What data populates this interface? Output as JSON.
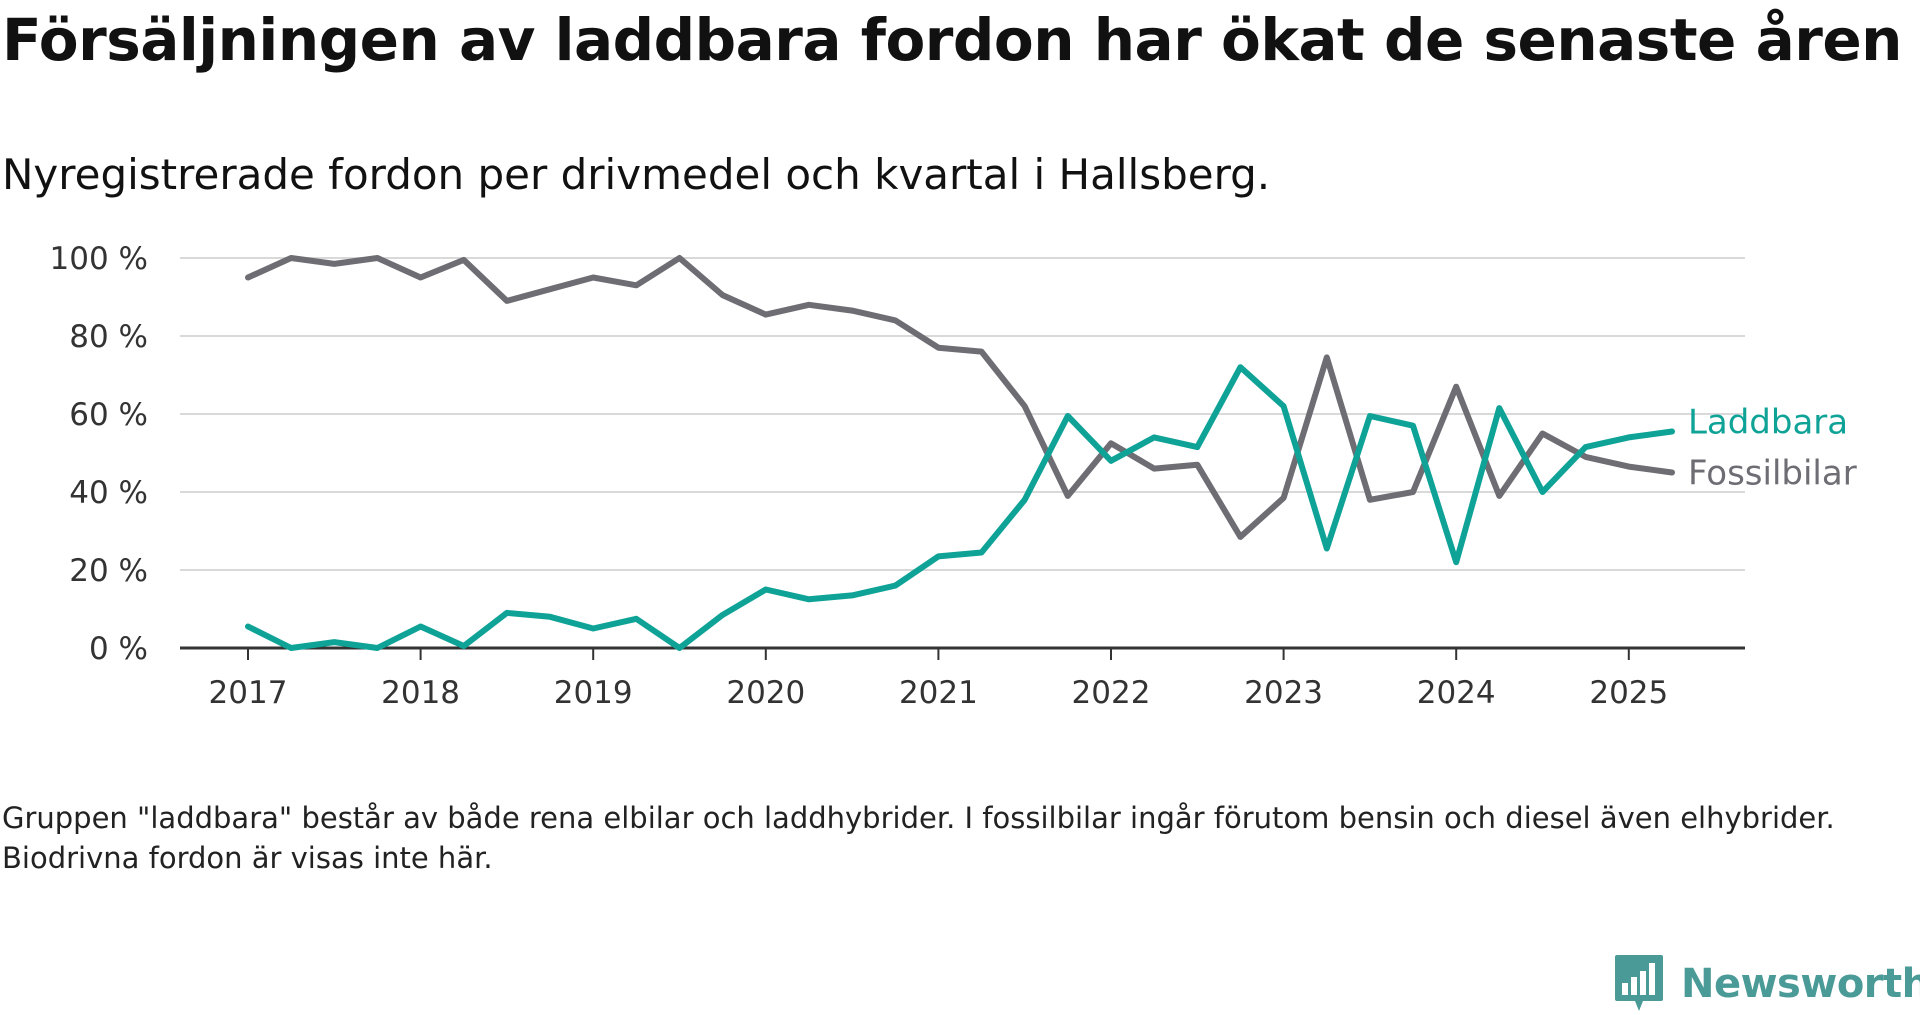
{
  "title": "Försäljningen av laddbara fordon har ökat de senaste åren",
  "subtitle": "Nyregistrerade fordon per drivmedel och kvartal i Hallsberg.",
  "footnote": "Gruppen \"laddbara\" består av både rena elbilar och laddhybrider. I fossilbilar ingår förutom bensin och diesel även elhybrider. Biodrivna fordon är visas inte här.",
  "brand": {
    "name": "Newsworthy",
    "icon": "newsworthy-logo-icon",
    "color": "#4a9a97"
  },
  "chart_data": {
    "type": "line",
    "title": "Försäljningen av laddbara fordon har ökat de senaste åren",
    "subtitle": "Nyregistrerade fordon per drivmedel och kvartal i Hallsberg.",
    "xlabel": "",
    "ylabel": "",
    "x_ticks": [
      "2017",
      "2018",
      "2019",
      "2020",
      "2021",
      "2022",
      "2023",
      "2024",
      "2025"
    ],
    "y_ticks": [
      "0 %",
      "20 %",
      "40 %",
      "60 %",
      "80 %",
      "100 %"
    ],
    "ylim": [
      0,
      100
    ],
    "grid": "horizontal",
    "legend": "direct labels at line ends",
    "x": [
      "2017-Q1",
      "2017-Q2",
      "2017-Q3",
      "2017-Q4",
      "2018-Q1",
      "2018-Q2",
      "2018-Q3",
      "2018-Q4",
      "2019-Q1",
      "2019-Q2",
      "2019-Q3",
      "2019-Q4",
      "2020-Q1",
      "2020-Q2",
      "2020-Q3",
      "2020-Q4",
      "2021-Q1",
      "2021-Q2",
      "2021-Q3",
      "2021-Q4",
      "2022-Q1",
      "2022-Q2",
      "2022-Q3",
      "2022-Q4",
      "2023-Q1",
      "2023-Q2",
      "2023-Q3",
      "2023-Q4",
      "2024-Q1",
      "2024-Q2",
      "2024-Q3",
      "2024-Q4",
      "2025-Q1",
      "2025-Q2"
    ],
    "series": [
      {
        "name": "Fossilbilar",
        "color": "#6e6d73",
        "values": [
          95,
          100,
          98.5,
          100,
          95,
          99.5,
          89,
          92,
          95,
          93,
          100,
          90.5,
          85.5,
          88,
          86.5,
          84,
          77,
          76,
          62,
          39,
          52.5,
          46,
          47,
          28.5,
          38.5,
          74.5,
          38,
          40,
          67,
          39,
          55,
          49,
          46.5,
          45
        ]
      },
      {
        "name": "Laddbara",
        "color": "#0fa397",
        "values": [
          5.5,
          0,
          1.5,
          0,
          5.5,
          0.5,
          9,
          8,
          5,
          7.5,
          0,
          8.5,
          15,
          12.5,
          13.5,
          16,
          23.5,
          24.5,
          38,
          59.5,
          48,
          54,
          51.5,
          72,
          62,
          25.5,
          59.5,
          57,
          22,
          61.5,
          40,
          51.5,
          54,
          55.5
        ]
      }
    ]
  }
}
